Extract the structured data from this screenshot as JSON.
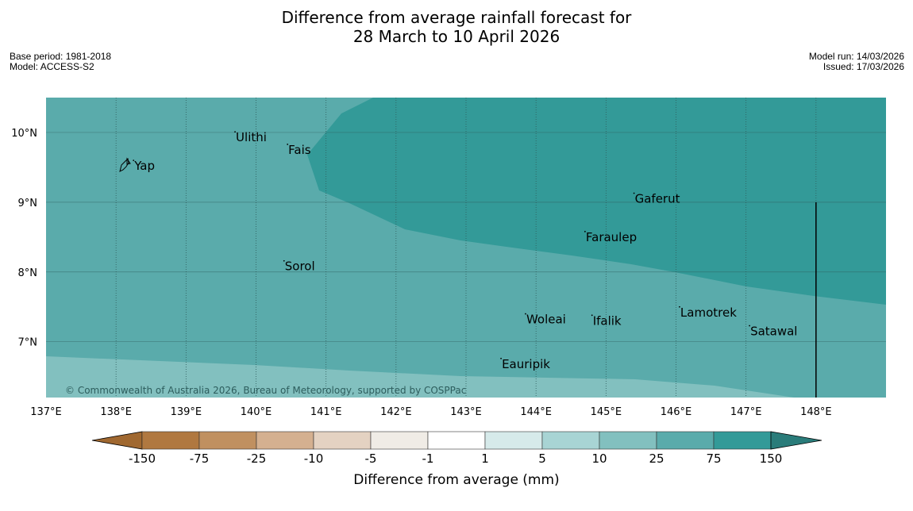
{
  "title": {
    "line1": "Difference from average rainfall forecast for",
    "line2": "28 March to 10 April 2026"
  },
  "meta": {
    "base_period": "Base period: 1981-2018",
    "model": "Model: ACCESS-S2",
    "model_run": "Model run: 14/03/2026",
    "issued": "Issued: 17/03/2026"
  },
  "map": {
    "lon_ticks": [
      "137°E",
      "138°E",
      "139°E",
      "140°E",
      "141°E",
      "142°E",
      "143°E",
      "144°E",
      "145°E",
      "146°E",
      "147°E",
      "148°E"
    ],
    "lat_ticks": [
      "10°N",
      "9°N",
      "8°N",
      "7°N"
    ],
    "lon_values": [
      137,
      138,
      139,
      140,
      141,
      142,
      143,
      144,
      145,
      146,
      147,
      148
    ],
    "lat_values": [
      10,
      9,
      8,
      7
    ],
    "lon_range": [
      137,
      149
    ],
    "lat_range": [
      6.2,
      10.5
    ],
    "places": [
      {
        "name": "Yap",
        "lon": 138.25,
        "lat": 9.52
      },
      {
        "name": "Ulithi",
        "lon": 139.7,
        "lat": 9.93
      },
      {
        "name": "Fais",
        "lon": 140.45,
        "lat": 9.75
      },
      {
        "name": "Gaferut",
        "lon": 145.4,
        "lat": 9.05
      },
      {
        "name": "Faraulep",
        "lon": 144.7,
        "lat": 8.5
      },
      {
        "name": "Sorol",
        "lon": 140.4,
        "lat": 8.08
      },
      {
        "name": "Lamotrek",
        "lon": 146.05,
        "lat": 7.42
      },
      {
        "name": "Woleai",
        "lon": 143.85,
        "lat": 7.32
      },
      {
        "name": "Ifalik",
        "lon": 144.8,
        "lat": 7.3
      },
      {
        "name": "Satawal",
        "lon": 147.05,
        "lat": 7.15
      },
      {
        "name": "Eauripik",
        "lon": 143.5,
        "lat": 6.68
      }
    ],
    "copyright": "© Commonwealth of Australia 2026, Bureau of Meteorology, supported by COSPPac",
    "boundary_line": {
      "lon": 148.0,
      "lat_from": 6.2,
      "lat_to": 9.0
    }
  },
  "legend": {
    "title": "Difference from average (mm)",
    "labels": [
      "-150",
      "-75",
      "-25",
      "-10",
      "-5",
      "-1",
      "1",
      "5",
      "10",
      "25",
      "75",
      "150"
    ],
    "colors": [
      "#b07840",
      "#c09060",
      "#d4b090",
      "#e4d2c2",
      "#f0ece6",
      "#ffffff",
      "#d6eaea",
      "#a8d4d4",
      "#82c0bf",
      "#5aabab",
      "#339a98"
    ],
    "extend_low_color": "#a06830",
    "extend_high_color": "#2a7c7a"
  },
  "colors": {
    "zone_low": "#82c0bf",
    "zone_mid": "#5aabab",
    "zone_high": "#339a98",
    "grid": "#2f5a5a"
  }
}
